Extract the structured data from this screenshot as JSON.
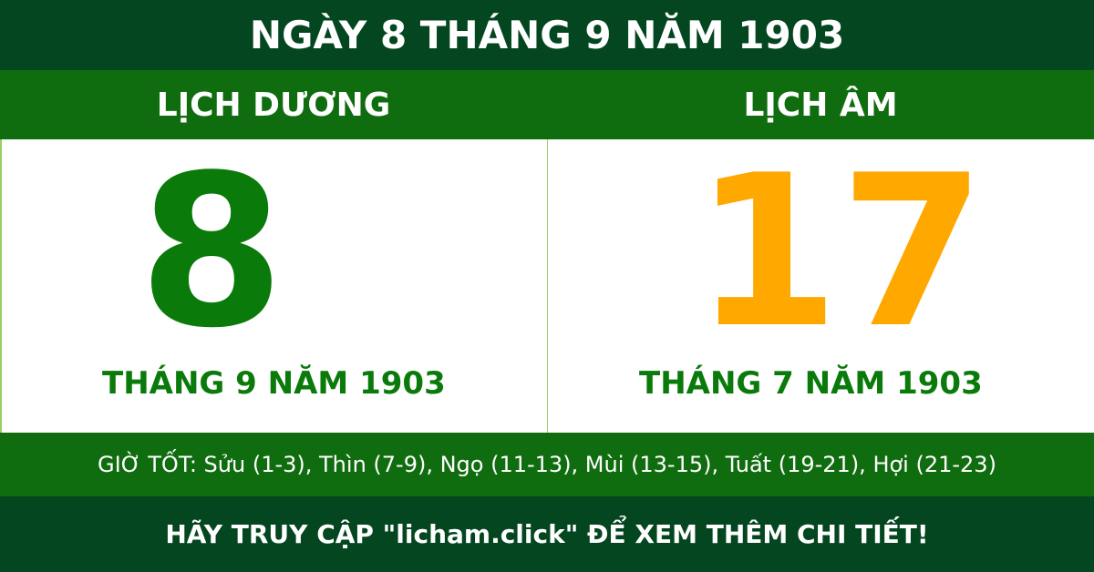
{
  "title": "NGÀY 8 THÁNG 9 NĂM 1903",
  "solar": {
    "heading": "LỊCH DƯƠNG",
    "day": "8",
    "month_year": "THÁNG 9 NĂM 1903"
  },
  "lunar": {
    "heading": "LỊCH ÂM",
    "day": "17",
    "month_year": "THÁNG 7 NĂM 1903"
  },
  "good_hours": "GIỜ TỐT: Sửu (1-3), Thìn (7-9), Ngọ (11-13), Mùi (13-15), Tuất (19-21), Hợi (21-23)",
  "footer": "HÃY TRUY CẬP \"licham.click\" ĐỂ XEM THÊM CHI TIẾT!",
  "colors": {
    "dark_green": "#03461f",
    "green": "#106d0f",
    "solar_day": "#0a7a0a",
    "lunar_day": "#fea800"
  }
}
